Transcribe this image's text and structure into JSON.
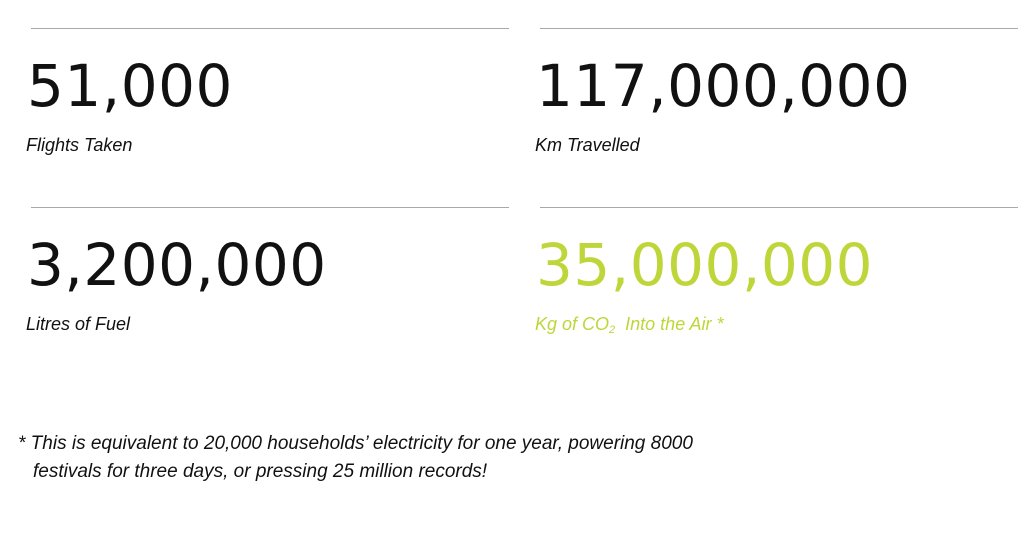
{
  "stats": [
    {
      "value": "51,000",
      "label": "Flights Taken"
    },
    {
      "value": "117,000,000",
      "label": "Km Travelled"
    },
    {
      "value": "3,200,000",
      "label": "Litres of Fuel"
    },
    {
      "value": "35,000,000",
      "label_prefix": "Kg of CO",
      "label_sub": "2",
      "label_suffix": "  Into the Air *"
    }
  ],
  "footnote": {
    "line1": "* This is equivalent to 20,000 households’ electricity for one year, powering 8000",
    "line2": "festivals for three days, or pressing 25 million records!"
  },
  "colors": {
    "text": "#111111",
    "highlight": "#bfd63a",
    "rule": "#a9a9a9"
  }
}
